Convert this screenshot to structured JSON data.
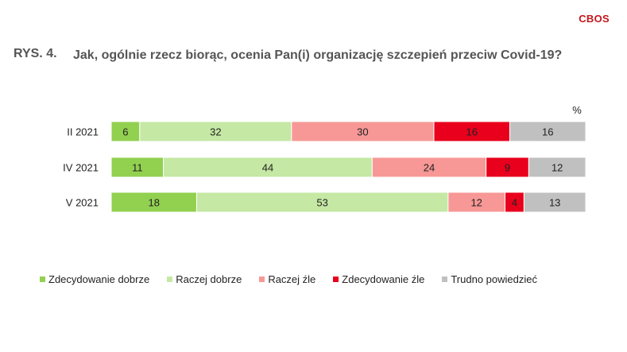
{
  "brand": "CBOS",
  "figure_label": "RYS. 4.",
  "title": "Jak, ogólnie rzecz biorąc, ocenia Pan(i) organizację szczepień przeciw Covid-19?",
  "chart_data": {
    "type": "bar",
    "orientation": "horizontal",
    "stacked": true,
    "unit_label": "%",
    "categories": [
      "II 2021",
      "IV 2021",
      "V 2021"
    ],
    "series": [
      {
        "name": "Zdecydowanie dobrze",
        "color": "#92d050",
        "values": [
          6,
          11,
          18
        ]
      },
      {
        "name": "Raczej dobrze",
        "color": "#c5e8a4",
        "values": [
          32,
          44,
          53
        ]
      },
      {
        "name": "Raczej źle",
        "color": "#f79896",
        "values": [
          30,
          24,
          12
        ]
      },
      {
        "name": "Zdecydowanie źle",
        "color": "#e8001c",
        "values": [
          16,
          9,
          4
        ]
      },
      {
        "name": "Trudno powiedzieć",
        "color": "#c0c0c0",
        "values": [
          16,
          12,
          13
        ]
      }
    ],
    "xlim": [
      0,
      100
    ],
    "grid": false,
    "legend_position": "bottom"
  }
}
